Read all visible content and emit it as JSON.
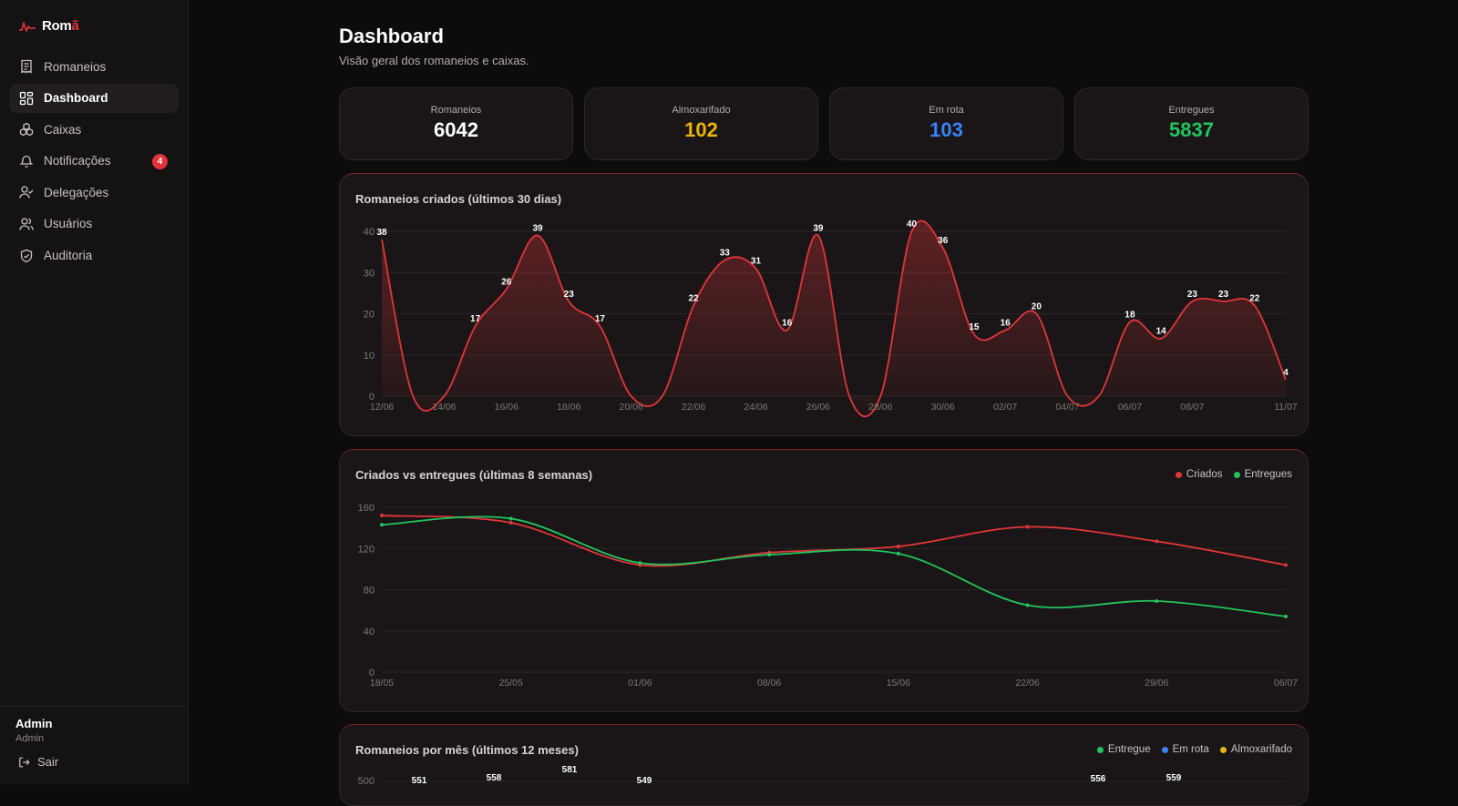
{
  "app": {
    "brand_main": "Rom",
    "brand_accent": "ã"
  },
  "sidebar": {
    "items": [
      {
        "label": "Romaneios",
        "icon": "receipt-icon"
      },
      {
        "label": "Dashboard",
        "icon": "layout-grid-icon",
        "active": true
      },
      {
        "label": "Caixas",
        "icon": "boxes-icon"
      },
      {
        "label": "Notificações",
        "icon": "bell-icon",
        "badge": "4"
      },
      {
        "label": "Delegações",
        "icon": "user-check-icon"
      },
      {
        "label": "Usuários",
        "icon": "users-icon"
      },
      {
        "label": "Auditoria",
        "icon": "shield-check-icon"
      }
    ],
    "user": {
      "name": "Admin",
      "role": "Admin"
    },
    "logout_label": "Sair"
  },
  "header": {
    "title": "Dashboard",
    "subtitle": "Visão geral dos romaneios e caixas."
  },
  "stats": [
    {
      "label": "Romaneios",
      "value": "6042",
      "color": "#ffffff"
    },
    {
      "label": "Almoxarifado",
      "value": "102",
      "color": "#eab308"
    },
    {
      "label": "Em rota",
      "value": "103",
      "color": "#3b82f6"
    },
    {
      "label": "Entregues",
      "value": "5837",
      "color": "#22c55e"
    }
  ],
  "colors": {
    "accent": "#e0353a",
    "green": "#22c55e",
    "blue": "#3b82f6",
    "yellow": "#eab308"
  },
  "chart_data": [
    {
      "type": "area",
      "title": "Romaneios criados (últimos 30 dias)",
      "x": [
        "12/06",
        "13/06",
        "14/06",
        "15/06",
        "16/06",
        "17/06",
        "18/06",
        "19/06",
        "20/06",
        "21/06",
        "22/06",
        "23/06",
        "24/06",
        "25/06",
        "26/06",
        "27/06",
        "28/06",
        "29/06",
        "30/06",
        "01/07",
        "02/07",
        "03/07",
        "04/07",
        "05/07",
        "06/07",
        "07/07",
        "08/07",
        "09/07",
        "10/07",
        "11/07"
      ],
      "values": [
        38,
        0,
        0,
        17,
        26,
        39,
        23,
        17,
        0,
        0,
        22,
        33,
        31,
        16,
        39,
        0,
        0,
        40,
        36,
        15,
        16,
        20,
        0,
        0,
        18,
        14,
        23,
        23,
        22,
        4
      ],
      "x_tick_labels": [
        "12/06",
        "14/06",
        "16/06",
        "18/06",
        "20/06",
        "22/06",
        "24/06",
        "26/06",
        "28/06",
        "30/06",
        "02/07",
        "04/07",
        "06/07",
        "08/07",
        "11/07"
      ],
      "y_ticks": [
        0,
        10,
        20,
        30,
        40
      ],
      "ylim": [
        0,
        40
      ],
      "grid": true
    },
    {
      "type": "line",
      "title": "Criados vs entregues (últimas 8 semanas)",
      "categories": [
        "18/05",
        "25/05",
        "01/06",
        "08/06",
        "15/06",
        "22/06",
        "29/06",
        "06/07"
      ],
      "series": [
        {
          "name": "Criados",
          "color": "#e0353a",
          "values": [
            152,
            145,
            104,
            116,
            122,
            141,
            127,
            104
          ]
        },
        {
          "name": "Entregues",
          "color": "#22c55e",
          "values": [
            143,
            149,
            106,
            114,
            115,
            65,
            69,
            54
          ]
        }
      ],
      "y_ticks": [
        0,
        40,
        80,
        120,
        160
      ],
      "ylim": [
        0,
        160
      ],
      "legend": "top-right",
      "grid": true
    },
    {
      "type": "bar",
      "title": "Romaneios por mês (últimos 12 meses)",
      "series": [
        {
          "name": "Entregue",
          "color": "#22c55e"
        },
        {
          "name": "Em rota",
          "color": "#3b82f6"
        },
        {
          "name": "Almoxarifado",
          "color": "#eab308"
        }
      ],
      "visible_y_tick": "500",
      "visible_totals": [
        "551",
        "558",
        "581",
        "549",
        "556",
        "559"
      ],
      "legend": "top-right"
    }
  ]
}
